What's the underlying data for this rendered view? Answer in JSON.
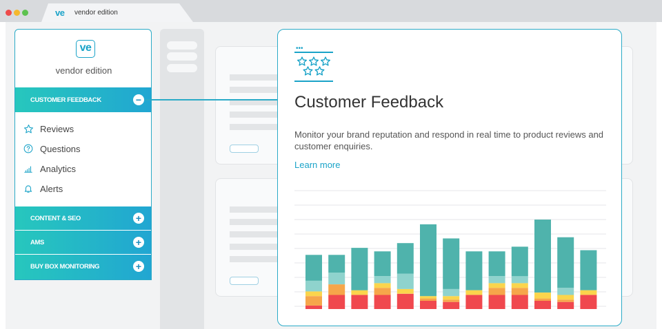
{
  "browser": {
    "tab_logo": "ve",
    "tab_title": "vendor edition"
  },
  "sidebar": {
    "logo": "ve",
    "brand": "vendor edition",
    "sections": [
      {
        "label": "CUSTOMER FEEDBACK",
        "toggle": "−",
        "expanded": true
      },
      {
        "label": "CONTENT & SEO",
        "toggle": "+"
      },
      {
        "label": "AMS",
        "toggle": "+"
      },
      {
        "label": "BUY BOX MONITORING",
        "toggle": "+"
      }
    ],
    "items": [
      {
        "label": "Reviews",
        "icon": "star-icon"
      },
      {
        "label": "Questions",
        "icon": "question-icon"
      },
      {
        "label": "Analytics",
        "icon": "bar-chart-icon"
      },
      {
        "label": "Alerts",
        "icon": "bell-icon"
      }
    ]
  },
  "card": {
    "icon_dots": "•••",
    "title": "Customer Feedback",
    "description": "Monitor your brand reputation and respond in real time to product reviews and customer enquiries.",
    "link": "Learn more",
    "colors": {
      "teal": "#4fb3ac",
      "light_teal": "#8fd3cd",
      "yellow": "#fbd54c",
      "orange": "#f6a64a",
      "red": "#f0484e"
    }
  },
  "chart_data": {
    "type": "bar",
    "stacked": true,
    "gridlines": true,
    "series": [
      {
        "color": "#f0484e",
        "values": [
          3,
          12,
          12,
          12,
          13,
          7,
          6,
          12,
          12,
          12,
          7,
          6,
          12
        ]
      },
      {
        "color": "#f6a64a",
        "values": [
          8,
          9,
          0,
          6,
          0,
          2,
          2,
          0,
          6,
          6,
          2,
          2,
          0
        ]
      },
      {
        "color": "#fbd54c",
        "values": [
          4,
          0,
          4,
          4,
          4,
          2,
          3,
          4,
          4,
          4,
          5,
          4,
          4
        ]
      },
      {
        "color": "#8fd3cd",
        "values": [
          9,
          10,
          0,
          6,
          13,
          0,
          6,
          0,
          6,
          6,
          0,
          6,
          0
        ]
      },
      {
        "color": "#4fb3ac",
        "values": [
          22,
          15,
          36,
          21,
          26,
          61,
          43,
          33,
          21,
          25,
          62,
          43,
          34
        ]
      }
    ]
  }
}
